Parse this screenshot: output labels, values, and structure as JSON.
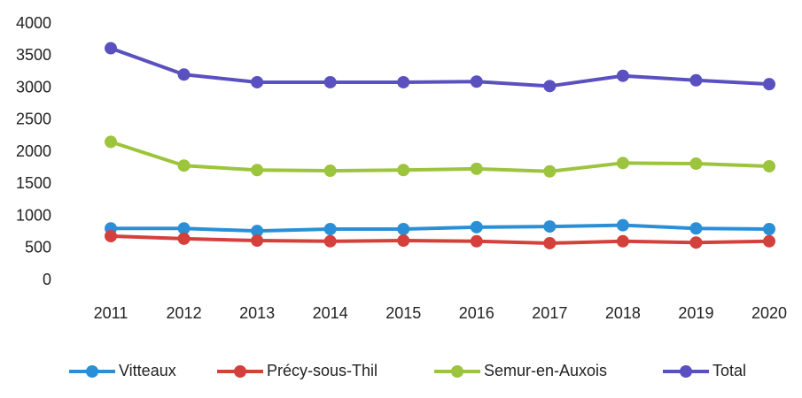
{
  "chart_data": {
    "type": "line",
    "categories": [
      "2011",
      "2012",
      "2013",
      "2014",
      "2015",
      "2016",
      "2017",
      "2018",
      "2019",
      "2020"
    ],
    "series": [
      {
        "name": "Vitteaux",
        "color": "#2a8fd6",
        "values": [
          810,
          810,
          770,
          800,
          800,
          830,
          840,
          860,
          810,
          800
        ]
      },
      {
        "name": "Précy-sous-Thil",
        "color": "#d4403b",
        "values": [
          690,
          650,
          620,
          610,
          620,
          610,
          580,
          610,
          590,
          610
        ]
      },
      {
        "name": "Semur-en-Auxois",
        "color": "#9cc43c",
        "values": [
          2160,
          1790,
          1720,
          1710,
          1720,
          1740,
          1700,
          1830,
          1820,
          1780
        ]
      },
      {
        "name": "Total",
        "color": "#5a50bf",
        "values": [
          3620,
          3210,
          3090,
          3090,
          3090,
          3100,
          3030,
          3190,
          3120,
          3060
        ]
      }
    ],
    "ylim": [
      0,
      4000
    ],
    "yticks": [
      0,
      500,
      1000,
      1500,
      2000,
      2500,
      3000,
      3500,
      4000
    ],
    "grid": false,
    "legend": "bottom"
  }
}
